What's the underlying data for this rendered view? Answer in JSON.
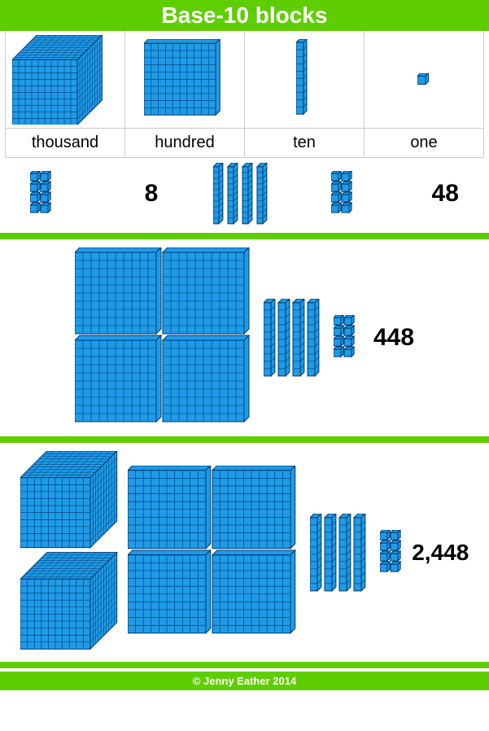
{
  "colors": {
    "accent": "#5fce00",
    "block_fill": "#1e9be9",
    "block_stroke": "#003a6b",
    "border": "#cccccc",
    "text": "#000000",
    "title_text": "#ffffff"
  },
  "title": {
    "text": "Base-10 blocks",
    "fontsize": 28,
    "height": 38
  },
  "legend": {
    "labels": [
      "thousand",
      "hundred",
      "ten",
      "one"
    ]
  },
  "examples": [
    {
      "value": "8",
      "thousands": 0,
      "hundreds": 0,
      "tens": 0,
      "ones": 8
    },
    {
      "value": "48",
      "thousands": 0,
      "hundreds": 0,
      "tens": 4,
      "ones": 8
    },
    {
      "value": "448",
      "thousands": 0,
      "hundreds": 4,
      "tens": 4,
      "ones": 8
    },
    {
      "value": "2,448",
      "thousands": 2,
      "hundreds": 4,
      "tens": 4,
      "ones": 8
    }
  ],
  "footer": "© Jenny Eather 2014"
}
